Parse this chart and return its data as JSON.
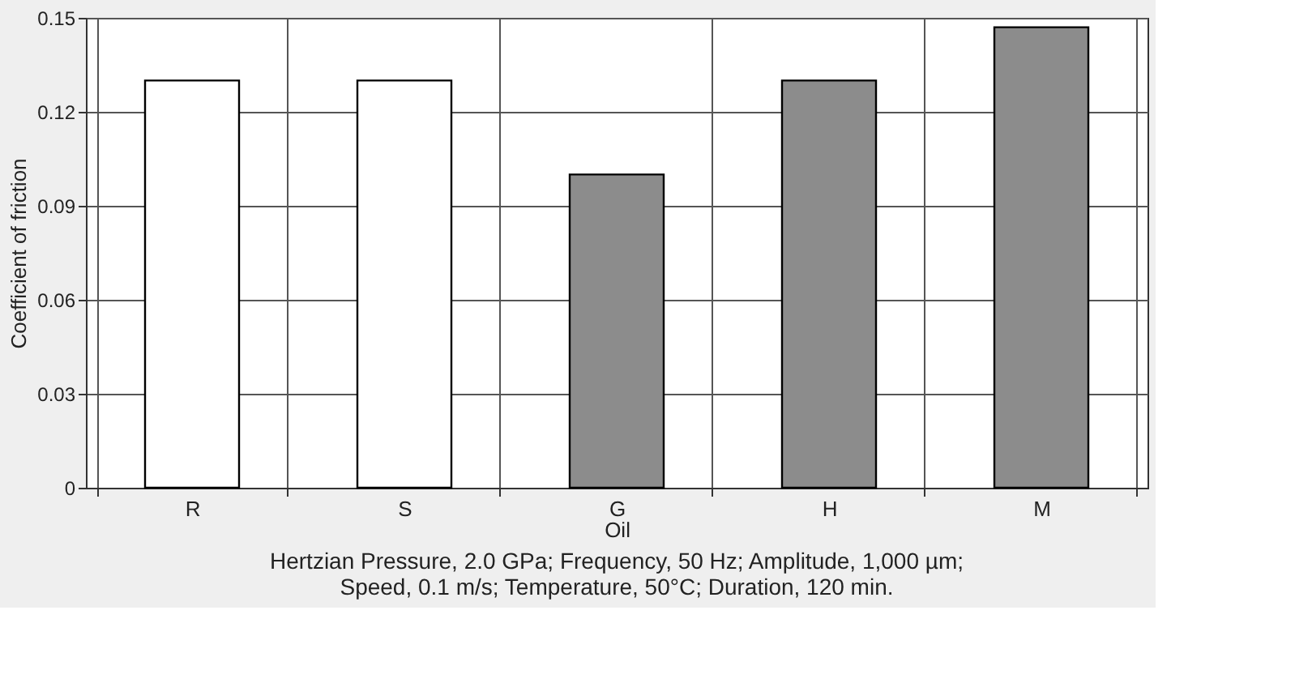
{
  "chart_data": {
    "type": "bar",
    "categories": [
      "R",
      "S",
      "G",
      "H",
      "M"
    ],
    "values": [
      0.13,
      0.13,
      0.1,
      0.13,
      0.147
    ],
    "colors": [
      "#ffffff",
      "#ffffff",
      "#8c8c8c",
      "#8c8c8c",
      "#8c8c8c"
    ],
    "xlabel": "Oil",
    "ylabel": "Coefficient of friction",
    "ylim": [
      0,
      0.15
    ],
    "yticks": [
      0,
      0.03,
      0.06,
      0.09,
      0.12,
      0.15
    ],
    "grid": true,
    "annotations": [
      "Hertzian Pressure, 2.0 GPa; Frequency, 50 Hz; Amplitude, 1,000 µm;",
      "Speed, 0.1 m/s; Temperature, 50°C; Duration, 120 min."
    ]
  }
}
